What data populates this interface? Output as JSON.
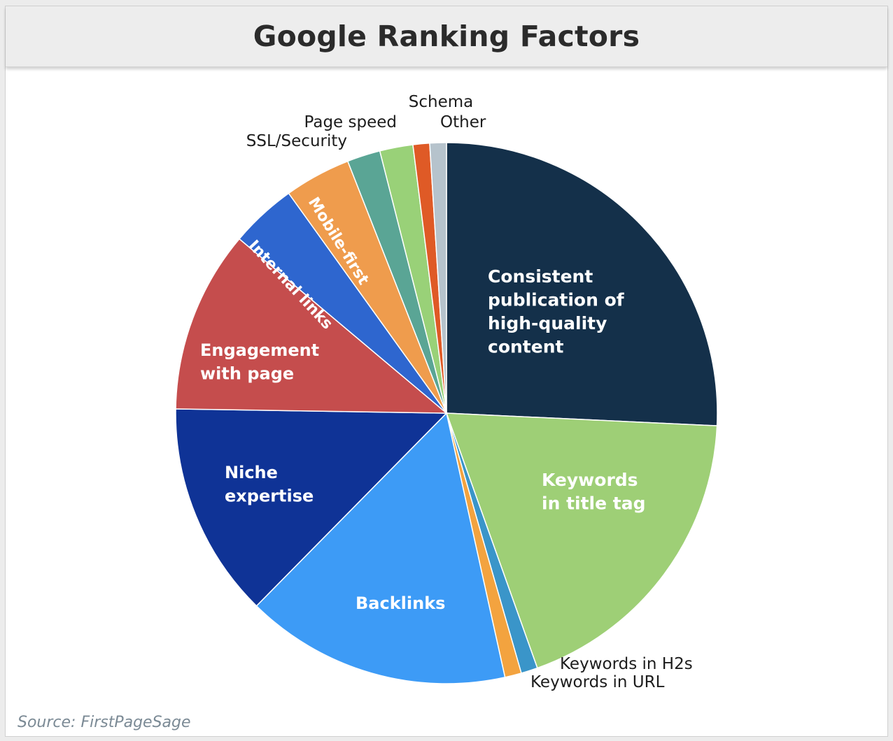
{
  "chart_data": {
    "type": "pie",
    "title": "Google Ranking Factors",
    "source": "Source: FirstPageSage",
    "slices": [
      {
        "label": "Consistent publication of high-quality content",
        "lines": [
          "Consistent",
          "publication of",
          "high-quality",
          "content"
        ],
        "value": 26,
        "color": "#14304a"
      },
      {
        "label": "Keywords in title tag",
        "lines": [
          "Keywords",
          "in title tag"
        ],
        "value": 19,
        "color": "#9ecf76"
      },
      {
        "label": "Keywords in H2s",
        "lines": [
          "Keywords in H2s"
        ],
        "value": 1,
        "color": "#3a95c9"
      },
      {
        "label": "Keywords in URL",
        "lines": [
          "Keywords in URL"
        ],
        "value": 1,
        "color": "#f3a33f"
      },
      {
        "label": "Backlinks",
        "lines": [
          "Backlinks"
        ],
        "value": 16,
        "color": "#3d9bf6"
      },
      {
        "label": "Niche expertise",
        "lines": [
          "Niche",
          "expertise"
        ],
        "value": 13,
        "color": "#0f3396"
      },
      {
        "label": "Engagement with page",
        "lines": [
          "Engagement",
          "with page"
        ],
        "value": 11,
        "color": "#c54d4d"
      },
      {
        "label": "Internal links",
        "lines": [
          "Internal links"
        ],
        "value": 4,
        "color": "#2e66cf"
      },
      {
        "label": "Mobile-first",
        "lines": [
          "Mobile-first"
        ],
        "value": 4,
        "color": "#ef9c4d"
      },
      {
        "label": "SSL/Security",
        "lines": [
          "SSL/Security"
        ],
        "value": 2,
        "color": "#5aa595"
      },
      {
        "label": "Page speed",
        "lines": [
          "Page speed"
        ],
        "value": 2,
        "color": "#99d178"
      },
      {
        "label": "Schema",
        "lines": [
          "Schema"
        ],
        "value": 1,
        "color": "#df5a26"
      },
      {
        "label": "Other",
        "lines": [
          "Other"
        ],
        "value": 1,
        "color": "#b6c3cc"
      }
    ]
  }
}
